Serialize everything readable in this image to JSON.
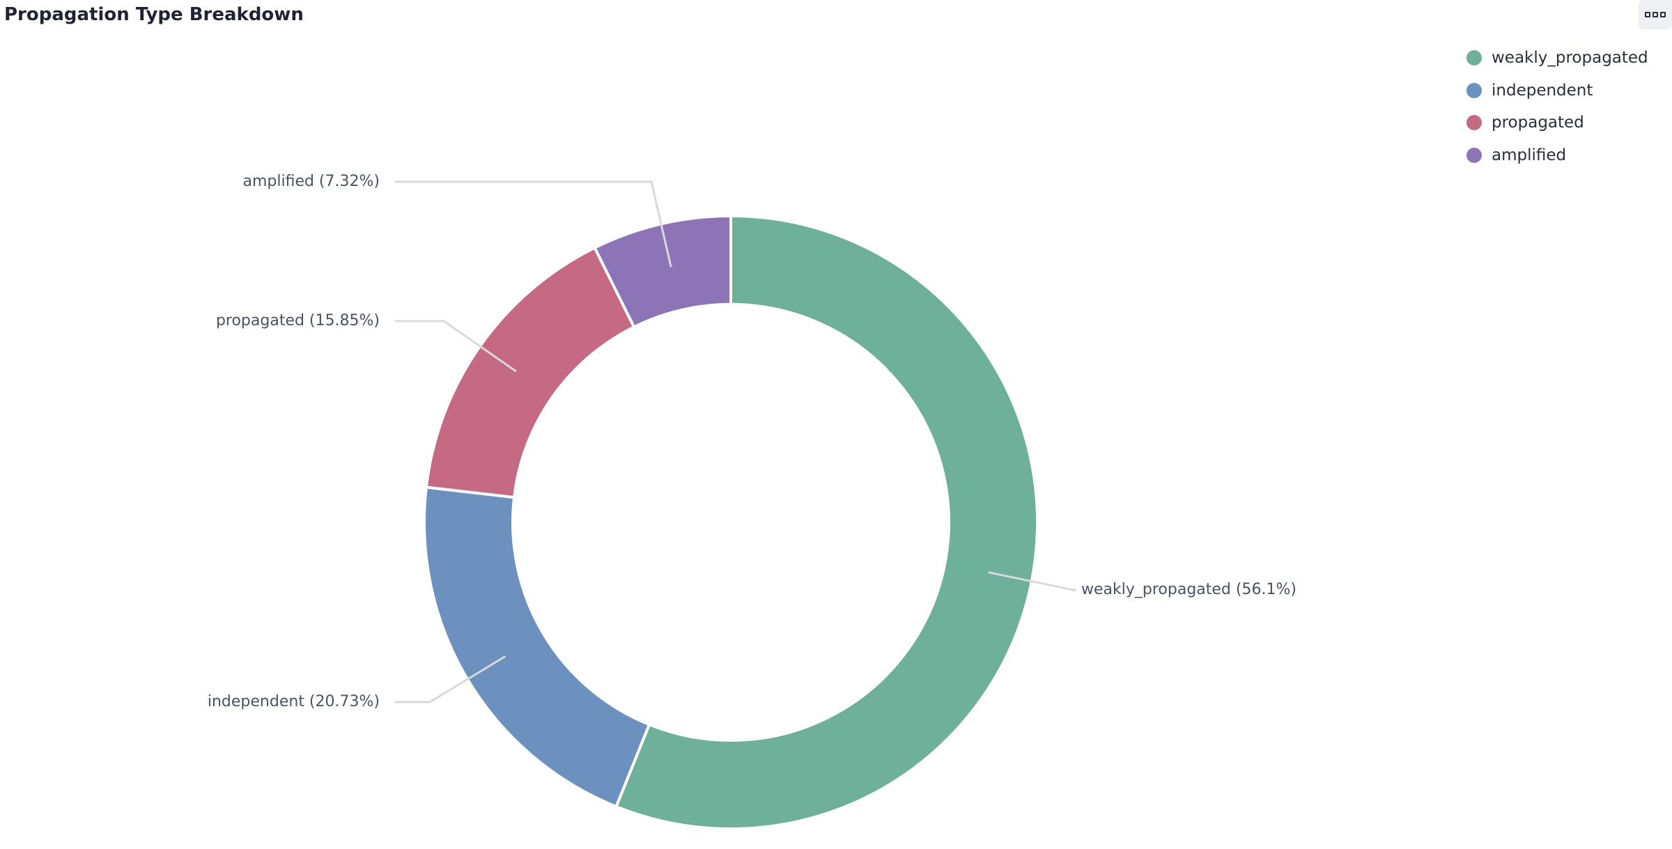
{
  "panel": {
    "title": "Propagation Type Breakdown"
  },
  "chart_data": {
    "type": "pie",
    "donut": true,
    "title": "Propagation Type Breakdown",
    "legend_position": "top-right",
    "categories": [
      "weakly_propagated",
      "independent",
      "propagated",
      "amplified"
    ],
    "values": [
      56.1,
      20.73,
      15.85,
      7.32
    ],
    "colors": [
      "#6fb09a",
      "#6c91bf",
      "#c66985",
      "#8d74b6"
    ],
    "labels": [
      "weakly_propagated (56.1%)",
      "independent (20.73%)",
      "propagated (15.85%)",
      "amplified (7.32%)"
    ]
  }
}
